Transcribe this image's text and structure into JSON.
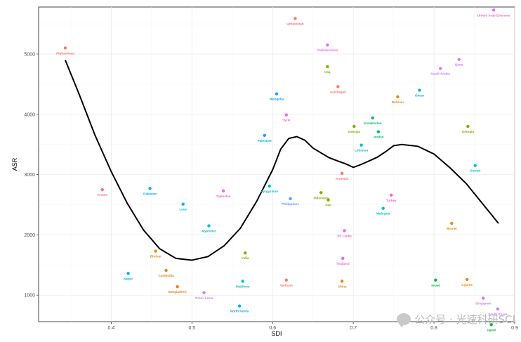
{
  "chart_data": {
    "type": "scatter",
    "xlabel": "SDI",
    "ylabel": "ASR",
    "xlim": [
      0.31,
      0.9
    ],
    "ylim": [
      560,
      5780
    ],
    "x_ticks": [
      "0.4",
      "0.5",
      "0.6",
      "0.7",
      "0.8",
      "0.9"
    ],
    "y_ticks": [
      "1000",
      "2000",
      "3000",
      "4000",
      "5000"
    ],
    "grid": true,
    "legend": "none",
    "points": [
      {
        "name": "Afghanistan",
        "x": 0.343,
        "y": 5100,
        "color": "#F8766D"
      },
      {
        "name": "Uzbekistan",
        "x": 0.628,
        "y": 5590,
        "color": "#F8766D"
      },
      {
        "name": "Turkmenistan",
        "x": 0.668,
        "y": 5150,
        "color": "#F564E3"
      },
      {
        "name": "United Arab Emirates",
        "x": 0.874,
        "y": 5730,
        "color": "#F564E3"
      },
      {
        "name": "Qatar",
        "x": 0.831,
        "y": 4910,
        "color": "#C77CFF"
      },
      {
        "name": "Saudi Arabia",
        "x": 0.808,
        "y": 4760,
        "color": "#C77CFF"
      },
      {
        "name": "Iraq",
        "x": 0.668,
        "y": 4790,
        "color": "#7CAE00"
      },
      {
        "name": "Azerbaijan",
        "x": 0.681,
        "y": 4460,
        "color": "#F8766D"
      },
      {
        "name": "Oman",
        "x": 0.782,
        "y": 4400,
        "color": "#00A9FF"
      },
      {
        "name": "Bahrain",
        "x": 0.755,
        "y": 4290,
        "color": "#E68613"
      },
      {
        "name": "Mongolia",
        "x": 0.605,
        "y": 4340,
        "color": "#00A9FF"
      },
      {
        "name": "Syria",
        "x": 0.617,
        "y": 3990,
        "color": "#F564E3"
      },
      {
        "name": "Kazakhstan",
        "x": 0.724,
        "y": 3940,
        "color": "#00BE67"
      },
      {
        "name": "Georgia",
        "x": 0.701,
        "y": 3800,
        "color": "#7CAE00"
      },
      {
        "name": "Georgia",
        "x": 0.842,
        "y": 3800,
        "color": "#7CAE00"
      },
      {
        "name": "Jordan",
        "x": 0.731,
        "y": 3710,
        "color": "#00BE67"
      },
      {
        "name": "Palestine",
        "x": 0.59,
        "y": 3650,
        "color": "#00A9FF"
      },
      {
        "name": "Lebanon",
        "x": 0.71,
        "y": 3490,
        "color": "#00BFC4"
      },
      {
        "name": "Kuwait",
        "x": 0.851,
        "y": 3150,
        "color": "#00BFC4"
      },
      {
        "name": "Armenia",
        "x": 0.686,
        "y": 3020,
        "color": "#F8766D"
      },
      {
        "name": "Pakistan",
        "x": 0.448,
        "y": 2770,
        "color": "#00A9FF"
      },
      {
        "name": "Yemen",
        "x": 0.389,
        "y": 2750,
        "color": "#F8766D"
      },
      {
        "name": "Tajikistan",
        "x": 0.539,
        "y": 2730,
        "color": "#F564E3"
      },
      {
        "name": "Kyrgyzstan",
        "x": 0.596,
        "y": 2810,
        "color": "#00BFC4"
      },
      {
        "name": "Philippines",
        "x": 0.622,
        "y": 2600,
        "color": "#619CFF"
      },
      {
        "name": "Indonesia",
        "x": 0.66,
        "y": 2700,
        "color": "#7CAE00"
      },
      {
        "name": "Iran",
        "x": 0.669,
        "y": 2580,
        "color": "#7CAE00"
      },
      {
        "name": "Turkey",
        "x": 0.747,
        "y": 2660,
        "color": "#FF61CC"
      },
      {
        "name": "Malaysia",
        "x": 0.737,
        "y": 2440,
        "color": "#00BFC4"
      },
      {
        "name": "Laos",
        "x": 0.489,
        "y": 2510,
        "color": "#00BFC4"
      },
      {
        "name": "Myanmar",
        "x": 0.521,
        "y": 2150,
        "color": "#00BFC4"
      },
      {
        "name": "Brunei",
        "x": 0.822,
        "y": 2190,
        "color": "#E68613"
      },
      {
        "name": "Sri Lanka",
        "x": 0.689,
        "y": 2070,
        "color": "#F564E3"
      },
      {
        "name": "Bhutan",
        "x": 0.455,
        "y": 1730,
        "color": "#E68613"
      },
      {
        "name": "India",
        "x": 0.566,
        "y": 1700,
        "color": "#7CAE00"
      },
      {
        "name": "Thailand",
        "x": 0.687,
        "y": 1610,
        "color": "#F564E3"
      },
      {
        "name": "Cambodia",
        "x": 0.468,
        "y": 1410,
        "color": "#E68613"
      },
      {
        "name": "Nepal",
        "x": 0.421,
        "y": 1360,
        "color": "#00A9FF"
      },
      {
        "name": "Israel",
        "x": 0.802,
        "y": 1250,
        "color": "#00BA38"
      },
      {
        "name": "Cyprus",
        "x": 0.841,
        "y": 1260,
        "color": "#E68613"
      },
      {
        "name": "Vietnam",
        "x": 0.617,
        "y": 1250,
        "color": "#F8766D"
      },
      {
        "name": "Maldives",
        "x": 0.563,
        "y": 1230,
        "color": "#00BFC4"
      },
      {
        "name": "China",
        "x": 0.686,
        "y": 1230,
        "color": "#E68613"
      },
      {
        "name": "Bangladesh",
        "x": 0.482,
        "y": 1140,
        "color": "#E68613"
      },
      {
        "name": "Timor-Leste",
        "x": 0.515,
        "y": 1040,
        "color": "#C77CFF"
      },
      {
        "name": "Singapore",
        "x": 0.861,
        "y": 950,
        "color": "#C77CFF"
      },
      {
        "name": "North Korea",
        "x": 0.559,
        "y": 820,
        "color": "#00A9FF"
      },
      {
        "name": "South Korea",
        "x": 0.879,
        "y": 770,
        "color": "#C77CFF"
      },
      {
        "name": "Japan",
        "x": 0.871,
        "y": 510,
        "color": "#00BA38"
      }
    ],
    "trend": {
      "x": [
        0.343,
        0.36,
        0.38,
        0.4,
        0.42,
        0.44,
        0.46,
        0.48,
        0.5,
        0.52,
        0.54,
        0.56,
        0.58,
        0.6,
        0.61,
        0.62,
        0.63,
        0.64,
        0.65,
        0.66,
        0.67,
        0.68,
        0.69,
        0.7,
        0.71,
        0.72,
        0.73,
        0.74,
        0.75,
        0.76,
        0.78,
        0.8,
        0.82,
        0.84,
        0.86,
        0.88
      ],
      "y": [
        4900,
        4340,
        3650,
        3050,
        2520,
        2080,
        1770,
        1610,
        1580,
        1640,
        1820,
        2110,
        2550,
        3080,
        3420,
        3600,
        3630,
        3570,
        3440,
        3360,
        3280,
        3230,
        3180,
        3120,
        3170,
        3230,
        3290,
        3380,
        3480,
        3500,
        3470,
        3340,
        3110,
        2850,
        2520,
        2190
      ]
    }
  },
  "watermark": "公众号 · 光速科研SCI"
}
